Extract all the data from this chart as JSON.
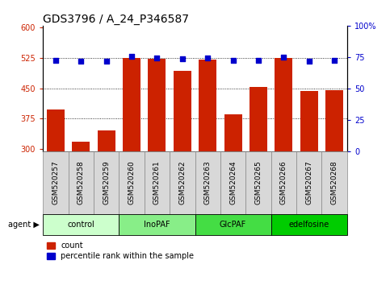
{
  "title": "GDS3796 / A_24_P346587",
  "samples": [
    "GSM520257",
    "GSM520258",
    "GSM520259",
    "GSM520260",
    "GSM520261",
    "GSM520262",
    "GSM520263",
    "GSM520264",
    "GSM520265",
    "GSM520266",
    "GSM520267",
    "GSM520268"
  ],
  "count_values": [
    397,
    318,
    345,
    525,
    523,
    493,
    522,
    385,
    453,
    525,
    443,
    445
  ],
  "percentile_values": [
    72.5,
    71.5,
    71.5,
    75.5,
    74.5,
    73.5,
    74.0,
    72.0,
    72.0,
    75.0,
    71.5,
    72.0
  ],
  "ylim_left": [
    295,
    605
  ],
  "ylim_right": [
    0,
    100
  ],
  "yticks_left": [
    300,
    375,
    450,
    525,
    600
  ],
  "yticks_right": [
    0,
    25,
    50,
    75,
    100
  ],
  "hlines": [
    375,
    450,
    525
  ],
  "bar_color": "#cc2200",
  "dot_color": "#0000cc",
  "bar_width": 0.7,
  "groups": [
    {
      "label": "control",
      "start": 0,
      "end": 3,
      "color": "#ccffcc"
    },
    {
      "label": "InoPAF",
      "start": 3,
      "end": 6,
      "color": "#88ee88"
    },
    {
      "label": "GlcPAF",
      "start": 6,
      "end": 9,
      "color": "#44dd44"
    },
    {
      "label": "edelfosine",
      "start": 9,
      "end": 12,
      "color": "#00cc00"
    }
  ],
  "agent_label": "agent",
  "legend_count_label": "count",
  "legend_pct_label": "percentile rank within the sample",
  "title_fontsize": 10,
  "tick_fontsize": 7,
  "label_fontsize": 8,
  "xtick_fontsize": 6.5,
  "cell_bg_color": "#d8d8d8",
  "plot_bg": "#ffffff"
}
